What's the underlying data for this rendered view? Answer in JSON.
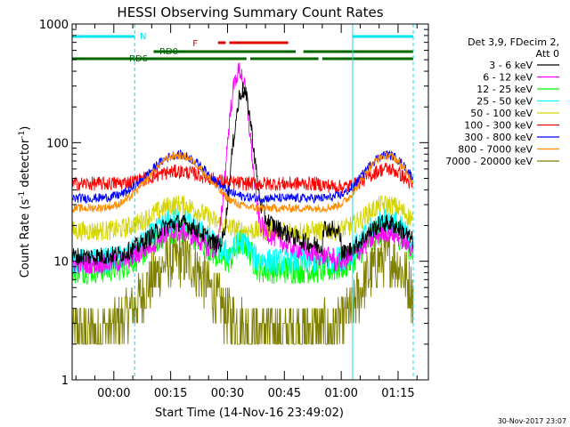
{
  "chart_data": {
    "type": "line",
    "title": "HESSI Observing Summary Count Rates",
    "xlabel": "Start Time (14-Nov-16 23:49:02)",
    "ylabel": "Count Rate (s",
    "ylabel_sup": "-1",
    "ylabel_mid": " detector",
    "ylabel_sup2": "-1",
    "ylabel_end": ")",
    "yscale": "log",
    "ylim": [
      1,
      1000
    ],
    "xlim": [
      -11,
      83
    ],
    "ytick_labels": [
      "1",
      "10",
      "100",
      "1000"
    ],
    "yticks": [
      1,
      10,
      100,
      1000
    ],
    "xtick_labels": [
      "00:00",
      "00:15",
      "00:30",
      "00:45",
      "01:00",
      "01:15"
    ],
    "xticks": [
      0,
      15,
      30,
      45,
      60,
      75
    ],
    "legend_header": [
      "Det 3,9, FDecim 2,",
      "Att 0"
    ],
    "series": [
      {
        "name": "3 - 6 keV",
        "color": "#000000"
      },
      {
        "name": "6 - 12 keV",
        "color": "#ff00ff"
      },
      {
        "name": "12 - 25 keV",
        "color": "#00ff00"
      },
      {
        "name": "25 - 50 keV",
        "color": "#00ffff"
      },
      {
        "name": "50 - 100 keV",
        "color": "#d4d400"
      },
      {
        "name": "100 - 300 keV",
        "color": "#ff0000"
      },
      {
        "name": "300 - 800 keV",
        "color": "#0000ff"
      },
      {
        "name": "800 - 7000 keV",
        "color": "#ff8c00"
      },
      {
        "name": "7000 - 20000 keV",
        "color": "#808000"
      }
    ],
    "flags": [
      {
        "label": "N",
        "color": "#00e5ee",
        "segments": [
          [
            -11,
            5.5
          ],
          [
            63,
            79
          ]
        ]
      },
      {
        "label": "F",
        "color": "#dd0000",
        "segments": [
          [
            27.5,
            29.5
          ],
          [
            30.5,
            46
          ]
        ]
      },
      {
        "label": "RD0",
        "color": "#006600",
        "segments": [
          [
            10.5,
            48
          ],
          [
            50,
            79
          ]
        ]
      },
      {
        "label": "RD6",
        "color": "#006600",
        "segments": [
          [
            -11,
            10.5
          ],
          [
            10.5,
            35
          ],
          [
            36,
            54
          ],
          [
            55,
            79
          ]
        ]
      }
    ],
    "markers": [
      -11,
      5.5,
      63,
      79
    ],
    "footer": "30-Nov-2017 23:07"
  },
  "colors": {
    "background": "#ffffff",
    "axes": "#000000",
    "marker_lines": "#00e5ee"
  }
}
